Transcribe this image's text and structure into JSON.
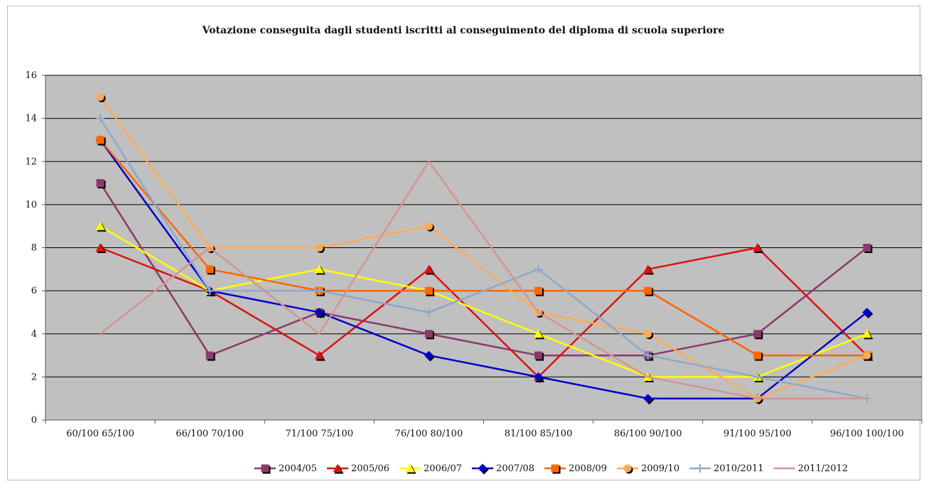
{
  "chart_data": {
    "type": "line",
    "title": "Votazione conseguita dagli studenti iscritti al conseguimento del diploma di scuola superiore",
    "xlabel": "",
    "ylabel": "",
    "categories": [
      "60/100 65/100",
      "66/100 70/100",
      "71/100 75/100",
      "76/100 80/100",
      "81/100 85/100",
      "86/100 90/100",
      "91/100 95/100",
      "96/100 100/100"
    ],
    "ylim": [
      0,
      16
    ],
    "yticks": [
      0,
      2,
      4,
      6,
      8,
      10,
      12,
      14,
      16
    ],
    "grid": "horizontal",
    "plot_background": "#c0c0c0",
    "legend_position": "bottom-right",
    "series": [
      {
        "name": "2004/05",
        "color": "#8b3a6b",
        "marker": "square",
        "values": [
          11,
          3,
          5,
          4,
          3,
          3,
          4,
          8
        ]
      },
      {
        "name": "2005/06",
        "color": "#dd1111",
        "marker": "triangle",
        "values": [
          8,
          6,
          3,
          7,
          2,
          7,
          8,
          3
        ]
      },
      {
        "name": "2006/07",
        "color": "#ffff00",
        "marker": "triangle",
        "values": [
          9,
          6,
          7,
          6,
          4,
          2,
          2,
          4
        ]
      },
      {
        "name": "2007/08",
        "color": "#0000cc",
        "marker": "diamond",
        "values": [
          13,
          6,
          5,
          3,
          2,
          1,
          1,
          5
        ]
      },
      {
        "name": "2008/09",
        "color": "#ff6600",
        "marker": "square",
        "values": [
          13,
          7,
          6,
          6,
          6,
          6,
          3,
          3
        ]
      },
      {
        "name": "2009/10",
        "color": "#ffaa55",
        "marker": "circle",
        "values": [
          15,
          8,
          8,
          9,
          5,
          4,
          1,
          3
        ]
      },
      {
        "name": "2010/2011",
        "color": "#8ea8cc",
        "marker": "plus",
        "values": [
          14,
          6,
          6,
          5,
          7,
          3,
          2,
          1
        ]
      },
      {
        "name": "2011/2012",
        "color": "#d49590",
        "marker": "none",
        "values": [
          4,
          8,
          4,
          12,
          5,
          2,
          1,
          1
        ]
      }
    ]
  }
}
